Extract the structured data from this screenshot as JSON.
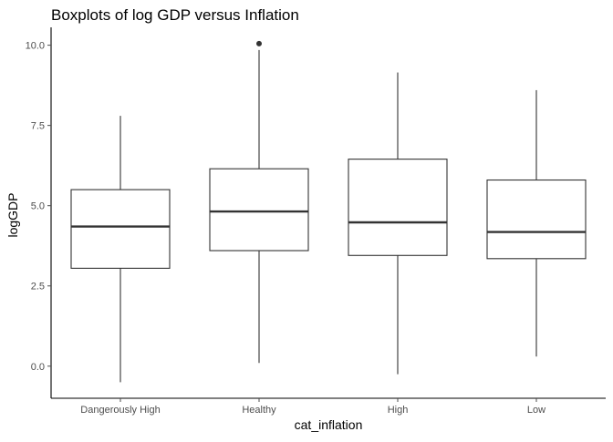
{
  "chart_data": {
    "type": "boxplot",
    "title": "Boxplots of log GDP versus Inflation",
    "xlabel": "cat_inflation",
    "ylabel": "logGDP",
    "ylim": [
      -1.0,
      10.5
    ],
    "yticks": [
      0.0,
      2.5,
      5.0,
      7.5,
      10.0
    ],
    "ytick_labels": [
      "0.0",
      "2.5",
      "5.0",
      "7.5",
      "10.0"
    ],
    "grid": false,
    "categories": [
      "Dangerously High",
      "Healthy",
      "High",
      "Low"
    ],
    "boxes": [
      {
        "category": "Dangerously High",
        "whisker_low": -0.5,
        "q1": 3.05,
        "median": 4.35,
        "q3": 5.5,
        "whisker_high": 7.8,
        "outliers": []
      },
      {
        "category": "Healthy",
        "whisker_low": 0.1,
        "q1": 3.6,
        "median": 4.82,
        "q3": 6.15,
        "whisker_high": 9.85,
        "outliers": [
          10.05
        ]
      },
      {
        "category": "High",
        "whisker_low": -0.25,
        "q1": 3.45,
        "median": 4.48,
        "q3": 6.45,
        "whisker_high": 9.15,
        "outliers": []
      },
      {
        "category": "Low",
        "whisker_low": 0.3,
        "q1": 3.35,
        "median": 4.18,
        "q3": 5.8,
        "whisker_high": 8.6,
        "outliers": []
      }
    ],
    "colors": {
      "box_line": "#333333",
      "box_fill": "#ffffff",
      "axis": "#000000",
      "tick_label": "#4d4d4d",
      "title": "#000000"
    }
  }
}
